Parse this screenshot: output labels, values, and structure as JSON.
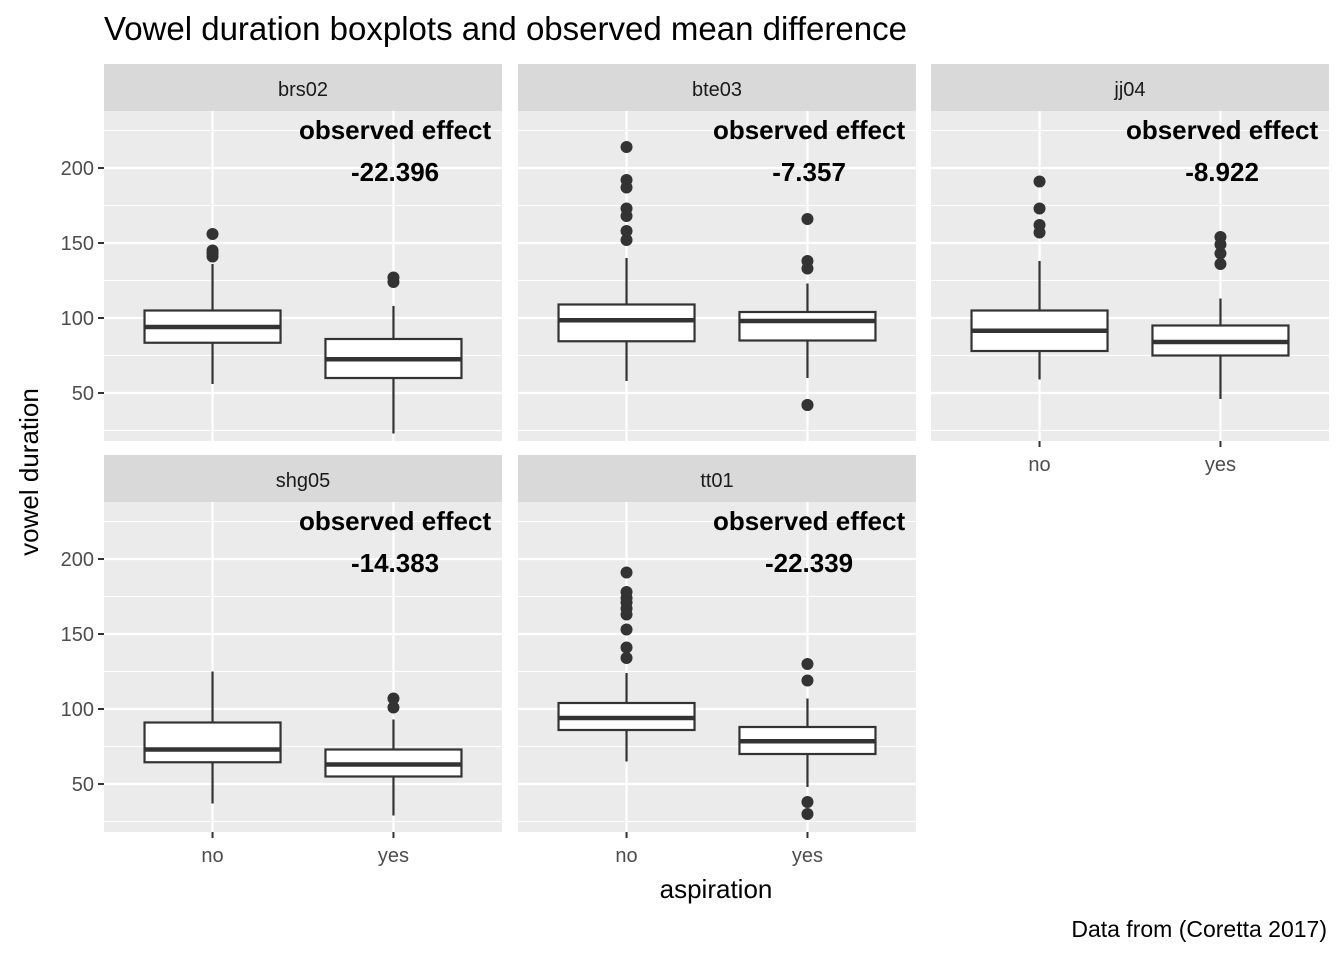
{
  "chart_data": {
    "type": "boxplot",
    "title": "Vowel duration boxplots and observed mean difference",
    "caption": "Data from (Coretta 2017)",
    "xlabel": "aspiration",
    "ylabel": "vowel duration",
    "categories": [
      "no",
      "yes"
    ],
    "y_ticks": [
      50,
      100,
      150,
      200
    ],
    "ylim": [
      18,
      238
    ],
    "annotation_label": "observed effect",
    "grid": true,
    "facets": [
      {
        "name": "brs02",
        "effect": "-22.396",
        "boxes": [
          {
            "category": "no",
            "whisker_low": 56,
            "q1": 83.5,
            "median": 94,
            "q3": 105,
            "whisker_high": 136,
            "outliers": [
              141,
              143,
              145,
              156
            ]
          },
          {
            "category": "yes",
            "whisker_low": 23,
            "q1": 60,
            "median": 72.5,
            "q3": 86,
            "whisker_high": 108,
            "outliers": [
              124,
              127
            ]
          }
        ]
      },
      {
        "name": "bte03",
        "effect": "-7.357",
        "boxes": [
          {
            "category": "no",
            "whisker_low": 58,
            "q1": 84.5,
            "median": 98.5,
            "q3": 109,
            "whisker_high": 140,
            "outliers": [
              152,
              158,
              168,
              173,
              187,
              192,
              214
            ]
          },
          {
            "category": "yes",
            "whisker_low": 60,
            "q1": 85,
            "median": 98,
            "q3": 104,
            "whisker_high": 123,
            "outliers": [
              42,
              42,
              133,
              138,
              166
            ]
          }
        ]
      },
      {
        "name": "jj04",
        "effect": "-8.922",
        "boxes": [
          {
            "category": "no",
            "whisker_low": 59,
            "q1": 78,
            "median": 91.5,
            "q3": 105,
            "whisker_high": 138,
            "outliers": [
              157,
              162,
              173,
              191
            ]
          },
          {
            "category": "yes",
            "whisker_low": 46,
            "q1": 75,
            "median": 84,
            "q3": 95,
            "whisker_high": 113,
            "outliers": [
              136,
              143,
              149,
              154
            ]
          }
        ]
      },
      {
        "name": "shg05",
        "effect": "-14.383",
        "boxes": [
          {
            "category": "no",
            "whisker_low": 37,
            "q1": 64.5,
            "median": 73,
            "q3": 91,
            "whisker_high": 125,
            "outliers": []
          },
          {
            "category": "yes",
            "whisker_low": 29,
            "q1": 55,
            "median": 63,
            "q3": 73,
            "whisker_high": 93,
            "outliers": [
              101,
              107
            ]
          }
        ]
      },
      {
        "name": "tt01",
        "effect": "-22.339",
        "boxes": [
          {
            "category": "no",
            "whisker_low": 65,
            "q1": 86,
            "median": 94,
            "q3": 104,
            "whisker_high": 124,
            "outliers": [
              134,
              141,
              153,
              163,
              167,
              171,
              174,
              178,
              191
            ]
          },
          {
            "category": "yes",
            "whisker_low": 48,
            "q1": 70,
            "median": 78.5,
            "q3": 88,
            "whisker_high": 107,
            "outliers": [
              30,
              38,
              119,
              130
            ]
          }
        ]
      }
    ]
  }
}
